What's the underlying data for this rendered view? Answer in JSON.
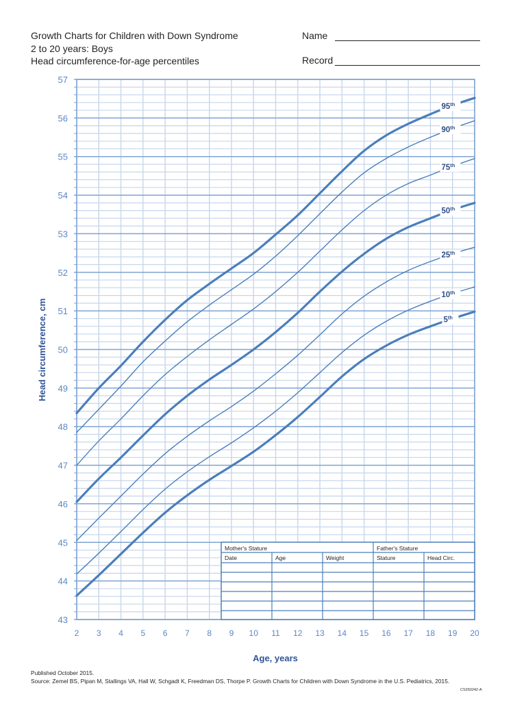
{
  "header": {
    "title_line1": "Growth Charts for Children with Down Syndrome",
    "title_line2": "2 to 20 years: Boys",
    "title_line3": "Head circumference-for-age percentiles",
    "name_label": "Name",
    "record_label": "Record"
  },
  "table": {
    "group_headers": [
      "Mother's Stature",
      "Father's Stature"
    ],
    "columns": [
      "Date",
      "Age",
      "Weight",
      "Stature",
      "Head Circ."
    ],
    "empty_rows": 6
  },
  "footer": {
    "published": "Published October 2015.",
    "source": "Source: Zemel BS, Pipan M, Stallings VA, Hall W, Schgadt K, Freedman DS, Thorpe P. Growth Charts for Children with Down Syndrome in the U.S. Pediatrics, 2015.",
    "code": "CS260242-A"
  },
  "colors": {
    "line": "#4a7ebb",
    "axis_text": "#5b87c5",
    "axis_title": "#2f5597",
    "grid_major": "#7fa3d3",
    "grid_minor": "#c6d6ec",
    "label": "#2f4f86"
  },
  "chart_data": {
    "type": "line",
    "title": "Head circumference-for-age percentiles",
    "subtitle": "Growth Charts for Children with Down Syndrome, 2 to 20 years: Boys",
    "xlabel": "Age, years",
    "ylabel": "Head circumference, cm",
    "xlim": [
      2,
      20
    ],
    "ylim": [
      43,
      57
    ],
    "x_ticks": [
      2,
      3,
      4,
      5,
      6,
      7,
      8,
      9,
      10,
      11,
      12,
      13,
      14,
      15,
      16,
      17,
      18,
      19,
      20
    ],
    "y_ticks": [
      43,
      44,
      45,
      46,
      47,
      48,
      49,
      50,
      51,
      52,
      53,
      54,
      55,
      56,
      57
    ],
    "grid": true,
    "minor_grid_y_step": 0.2,
    "x": [
      2,
      3,
      4,
      5,
      6,
      7,
      8,
      9,
      10,
      11,
      12,
      13,
      14,
      15,
      16,
      17,
      18,
      19,
      20
    ],
    "series": [
      {
        "name": "95th",
        "label": "95",
        "sup": "th",
        "bold": true,
        "values": [
          48.35,
          49.0,
          49.58,
          50.2,
          50.77,
          51.28,
          51.7,
          52.1,
          52.5,
          52.98,
          53.48,
          54.05,
          54.62,
          55.15,
          55.55,
          55.85,
          56.1,
          56.33,
          56.52
        ]
      },
      {
        "name": "90th",
        "label": "90",
        "sup": "th",
        "bold": false,
        "values": [
          47.85,
          48.45,
          49.05,
          49.68,
          50.22,
          50.72,
          51.15,
          51.55,
          51.95,
          52.42,
          52.95,
          53.52,
          54.08,
          54.58,
          54.95,
          55.25,
          55.5,
          55.73,
          55.93
        ]
      },
      {
        "name": "75th",
        "label": "75",
        "sup": "th",
        "bold": false,
        "values": [
          47.0,
          47.63,
          48.2,
          48.8,
          49.35,
          49.82,
          50.25,
          50.65,
          51.05,
          51.5,
          52.0,
          52.55,
          53.1,
          53.6,
          54.0,
          54.3,
          54.52,
          54.75,
          54.95
        ]
      },
      {
        "name": "50th",
        "label": "50",
        "sup": "th",
        "bold": true,
        "values": [
          46.05,
          46.65,
          47.2,
          47.77,
          48.32,
          48.8,
          49.22,
          49.6,
          50.0,
          50.45,
          50.95,
          51.5,
          52.02,
          52.48,
          52.87,
          53.17,
          53.4,
          53.62,
          53.8
        ]
      },
      {
        "name": "25th",
        "label": "25",
        "sup": "th",
        "bold": false,
        "values": [
          45.05,
          45.63,
          46.2,
          46.77,
          47.3,
          47.75,
          48.15,
          48.52,
          48.92,
          49.37,
          49.85,
          50.38,
          50.92,
          51.38,
          51.75,
          52.05,
          52.28,
          52.48,
          52.65
        ]
      },
      {
        "name": "10th",
        "label": "10",
        "sup": "th",
        "bold": false,
        "values": [
          44.18,
          44.72,
          45.28,
          45.85,
          46.38,
          46.83,
          47.22,
          47.58,
          47.97,
          48.4,
          48.88,
          49.4,
          49.92,
          50.37,
          50.73,
          51.02,
          51.25,
          51.45,
          51.62
        ]
      },
      {
        "name": "5th",
        "label": "5",
        "sup": "th",
        "bold": true,
        "values": [
          43.62,
          44.15,
          44.7,
          45.25,
          45.77,
          46.22,
          46.62,
          46.98,
          47.35,
          47.78,
          48.25,
          48.77,
          49.3,
          49.75,
          50.1,
          50.38,
          50.6,
          50.8,
          50.98
        ]
      }
    ],
    "label_positions_age": [
      18.9,
      18.9,
      18.9,
      18.9,
      18.9,
      18.9,
      18.9
    ]
  }
}
